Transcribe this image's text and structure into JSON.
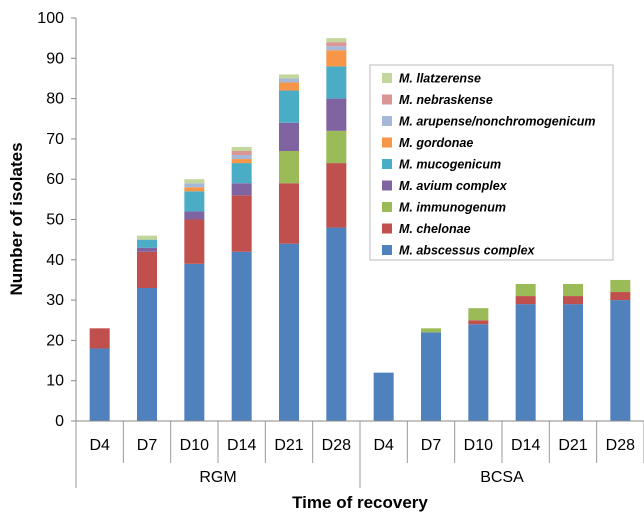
{
  "chart_data": {
    "type": "bar",
    "stacked": true,
    "title": "",
    "xlabel": "Time of recovery",
    "ylabel": "Number of isolates",
    "ylim": [
      0,
      100
    ],
    "yticks": [
      0,
      10,
      20,
      30,
      40,
      50,
      60,
      70,
      80,
      90,
      100
    ],
    "grid": false,
    "legend_position": "right",
    "categories": [
      "D4",
      "D7",
      "D10",
      "D14",
      "D21",
      "D28",
      "D4",
      "D7",
      "D10",
      "D14",
      "D21",
      "D28"
    ],
    "groups": [
      {
        "label": "RGM",
        "count": 6
      },
      {
        "label": "BCSA",
        "count": 6
      }
    ],
    "series": [
      {
        "name": "M. abscessus complex",
        "color": "#4f81bd",
        "values": [
          18,
          33,
          39,
          42,
          44,
          48,
          12,
          22,
          24,
          29,
          29,
          30
        ]
      },
      {
        "name": "M. chelonae",
        "color": "#c0504d",
        "values": [
          5,
          9,
          11,
          14,
          15,
          16,
          0,
          0,
          1,
          2,
          2,
          2
        ]
      },
      {
        "name": "M. immunogenum",
        "color": "#9bbb59",
        "values": [
          0,
          0,
          0,
          0,
          8,
          8,
          0,
          1,
          3,
          3,
          3,
          3
        ]
      },
      {
        "name": "M. avium complex",
        "color": "#8064a2",
        "values": [
          0,
          1,
          2,
          3,
          7,
          8,
          0,
          0,
          0,
          0,
          0,
          0
        ]
      },
      {
        "name": "M. mucogenicum",
        "color": "#4bacc6",
        "values": [
          0,
          2,
          5,
          5,
          8,
          8,
          0,
          0,
          0,
          0,
          0,
          0
        ]
      },
      {
        "name": "M. gordonae",
        "color": "#f79646",
        "values": [
          0,
          0,
          1,
          1,
          2,
          4,
          0,
          0,
          0,
          0,
          0,
          0
        ]
      },
      {
        "name": "M. arupense/nonchromogenicum",
        "color": "#a5b8d8",
        "values": [
          0,
          0,
          1,
          1,
          1,
          1,
          0,
          0,
          0,
          0,
          0,
          0
        ]
      },
      {
        "name": "M. nebraskense",
        "color": "#d99694",
        "values": [
          0,
          0,
          0,
          1,
          0,
          1,
          0,
          0,
          0,
          0,
          0,
          0
        ]
      },
      {
        "name": "M. llatzerense",
        "color": "#c3d69b",
        "values": [
          0,
          1,
          1,
          1,
          1,
          1,
          0,
          0,
          0,
          0,
          0,
          0
        ]
      }
    ]
  }
}
